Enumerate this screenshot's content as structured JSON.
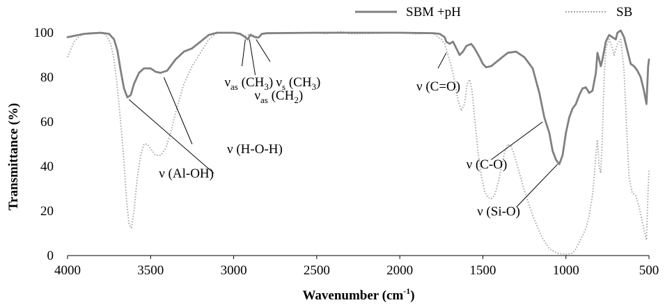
{
  "chart_data": {
    "type": "line",
    "xlabel": "Wavenumber (cm",
    "xlabel_sup": "-1",
    "xlabel_end": ")",
    "ylabel": "Transmittance (%)",
    "xlim": [
      4000,
      500
    ],
    "ylim": [
      0,
      100
    ],
    "x_ticks": [
      "4000",
      "3500",
      "3000",
      "2500",
      "2000",
      "1500",
      "1000",
      "500"
    ],
    "y_ticks": [
      "0",
      "20",
      "40",
      "60",
      "80",
      "100"
    ],
    "grid": false,
    "legend_position": "top-right",
    "series": [
      {
        "name": "SBM +pH",
        "color": "#808080",
        "style": "solid",
        "points": [
          [
            4000,
            98
          ],
          [
            3900,
            99.5
          ],
          [
            3800,
            100
          ],
          [
            3750,
            99.5
          ],
          [
            3720,
            97
          ],
          [
            3700,
            92
          ],
          [
            3680,
            83
          ],
          [
            3660,
            75
          ],
          [
            3640,
            71
          ],
          [
            3620,
            72
          ],
          [
            3600,
            77
          ],
          [
            3570,
            82
          ],
          [
            3540,
            84
          ],
          [
            3500,
            84
          ],
          [
            3470,
            82.5
          ],
          [
            3440,
            82
          ],
          [
            3400,
            83
          ],
          [
            3350,
            88
          ],
          [
            3300,
            91.5
          ],
          [
            3250,
            93
          ],
          [
            3200,
            96
          ],
          [
            3150,
            99
          ],
          [
            3100,
            100
          ],
          [
            3000,
            100
          ],
          [
            2960,
            99.5
          ],
          [
            2930,
            98
          ],
          [
            2915,
            97
          ],
          [
            2900,
            99
          ],
          [
            2870,
            98
          ],
          [
            2850,
            97.8
          ],
          [
            2830,
            99.5
          ],
          [
            2800,
            99.8
          ],
          [
            2500,
            100
          ],
          [
            2000,
            100
          ],
          [
            1800,
            99.8
          ],
          [
            1760,
            99.5
          ],
          [
            1730,
            98
          ],
          [
            1720,
            96
          ],
          [
            1700,
            95
          ],
          [
            1680,
            96
          ],
          [
            1660,
            93
          ],
          [
            1640,
            90
          ],
          [
            1620,
            91.5
          ],
          [
            1600,
            94
          ],
          [
            1570,
            95
          ],
          [
            1550,
            93
          ],
          [
            1520,
            89
          ],
          [
            1500,
            86
          ],
          [
            1480,
            84.5
          ],
          [
            1450,
            85
          ],
          [
            1400,
            88
          ],
          [
            1350,
            91
          ],
          [
            1300,
            91.5
          ],
          [
            1250,
            89
          ],
          [
            1200,
            84
          ],
          [
            1160,
            73
          ],
          [
            1130,
            62
          ],
          [
            1100,
            55
          ],
          [
            1080,
            47
          ],
          [
            1060,
            43
          ],
          [
            1040,
            41
          ],
          [
            1020,
            45
          ],
          [
            1000,
            55
          ],
          [
            980,
            62
          ],
          [
            960,
            66
          ],
          [
            940,
            68
          ],
          [
            920,
            72
          ],
          [
            900,
            75
          ],
          [
            880,
            75.5
          ],
          [
            860,
            73
          ],
          [
            840,
            74
          ],
          [
            820,
            82
          ],
          [
            810,
            91
          ],
          [
            800,
            88
          ],
          [
            790,
            85
          ],
          [
            780,
            88
          ],
          [
            760,
            96
          ],
          [
            740,
            99
          ],
          [
            720,
            98
          ],
          [
            700,
            97
          ],
          [
            690,
            100
          ],
          [
            670,
            101
          ],
          [
            650,
            98
          ],
          [
            630,
            92
          ],
          [
            610,
            86
          ],
          [
            590,
            85
          ],
          [
            570,
            83
          ],
          [
            550,
            80
          ],
          [
            530,
            74
          ],
          [
            515,
            68
          ],
          [
            505,
            85
          ],
          [
            500,
            88
          ]
        ]
      },
      {
        "name": "SB",
        "color": "#a6a6a6",
        "style": "dotted",
        "points": [
          [
            4000,
            89
          ],
          [
            3960,
            96
          ],
          [
            3920,
            99
          ],
          [
            3870,
            100
          ],
          [
            3820,
            99.8
          ],
          [
            3780,
            99.6
          ],
          [
            3760,
            98
          ],
          [
            3740,
            95
          ],
          [
            3720,
            88
          ],
          [
            3700,
            75
          ],
          [
            3680,
            60
          ],
          [
            3660,
            42
          ],
          [
            3645,
            25
          ],
          [
            3630,
            14
          ],
          [
            3615,
            12.5
          ],
          [
            3600,
            20
          ],
          [
            3580,
            35
          ],
          [
            3560,
            45
          ],
          [
            3540,
            50
          ],
          [
            3520,
            50
          ],
          [
            3500,
            48
          ],
          [
            3470,
            45
          ],
          [
            3440,
            45
          ],
          [
            3410,
            48
          ],
          [
            3380,
            55
          ],
          [
            3350,
            64
          ],
          [
            3300,
            77
          ],
          [
            3250,
            85
          ],
          [
            3200,
            91
          ],
          [
            3150,
            97
          ],
          [
            3100,
            100
          ],
          [
            3000,
            100
          ],
          [
            2960,
            99
          ],
          [
            2930,
            98.5
          ],
          [
            2900,
            99.5
          ],
          [
            2870,
            98.5
          ],
          [
            2850,
            98
          ],
          [
            2820,
            99.5
          ],
          [
            2500,
            100
          ],
          [
            2450,
            99.5
          ],
          [
            2350,
            100.5
          ],
          [
            2300,
            99.5
          ],
          [
            2000,
            100
          ],
          [
            1900,
            99.5
          ],
          [
            1800,
            99.8
          ],
          [
            1770,
            98
          ],
          [
            1750,
            97
          ],
          [
            1730,
            95
          ],
          [
            1710,
            90
          ],
          [
            1690,
            85
          ],
          [
            1670,
            78
          ],
          [
            1650,
            70
          ],
          [
            1630,
            65
          ],
          [
            1610,
            68
          ],
          [
            1595,
            77
          ],
          [
            1580,
            79
          ],
          [
            1565,
            74
          ],
          [
            1550,
            62
          ],
          [
            1530,
            47
          ],
          [
            1510,
            36
          ],
          [
            1490,
            29
          ],
          [
            1470,
            26
          ],
          [
            1450,
            25.5
          ],
          [
            1430,
            27
          ],
          [
            1410,
            32
          ],
          [
            1390,
            39
          ],
          [
            1370,
            46
          ],
          [
            1350,
            50
          ],
          [
            1330,
            49
          ],
          [
            1310,
            45
          ],
          [
            1280,
            37
          ],
          [
            1250,
            29
          ],
          [
            1200,
            18
          ],
          [
            1150,
            9
          ],
          [
            1100,
            3
          ],
          [
            1050,
            1
          ],
          [
            1000,
            0.5
          ],
          [
            960,
            1
          ],
          [
            940,
            3
          ],
          [
            920,
            6
          ],
          [
            900,
            9
          ],
          [
            880,
            12
          ],
          [
            860,
            18
          ],
          [
            840,
            27
          ],
          [
            830,
            35
          ],
          [
            820,
            45
          ],
          [
            810,
            52
          ],
          [
            800,
            40
          ],
          [
            790,
            37
          ],
          [
            780,
            55
          ],
          [
            770,
            80
          ],
          [
            760,
            93
          ],
          [
            740,
            97
          ],
          [
            720,
            93
          ],
          [
            710,
            90
          ],
          [
            690,
            95
          ],
          [
            670,
            97
          ],
          [
            650,
            83
          ],
          [
            635,
            58
          ],
          [
            620,
            35
          ],
          [
            600,
            28
          ],
          [
            580,
            27
          ],
          [
            560,
            22
          ],
          [
            540,
            15
          ],
          [
            525,
            10
          ],
          [
            515,
            7
          ],
          [
            505,
            30
          ],
          [
            500,
            38
          ]
        ]
      }
    ],
    "annotations": [
      {
        "text": "ν (Al-OH)",
        "x": 3450,
        "y": 35,
        "line_from": [
          3120,
          37
        ],
        "line_to": [
          3630,
          70
        ]
      },
      {
        "text": "ν (H-O-H)",
        "x": 3040,
        "y": 46,
        "line_from": [
          3250,
          50
        ],
        "line_to": [
          3420,
          80
        ]
      },
      {
        "text": "ν",
        "sub": "as",
        "tail": " (CH",
        "sub2": "3",
        "tail2": ")",
        "x": 3055,
        "y": 76,
        "line_from": [
          2950,
          85
        ],
        "line_to": [
          2930,
          97
        ]
      },
      {
        "text": "ν",
        "sub": "as",
        "tail": " (CH",
        "sub2": "2",
        "tail2": ")",
        "x": 2875,
        "y": 70,
        "line_from": [
          2870,
          81
        ],
        "line_to": [
          2905,
          97
        ]
      },
      {
        "text": "ν",
        "sub": "s",
        "tail": " (CH",
        "sub2": "3",
        "tail2": ")",
        "x": 2745,
        "y": 76,
        "line_from": [
          2780,
          87
        ],
        "line_to": [
          2865,
          97
        ]
      },
      {
        "text": "ν (C=O)",
        "x": 1900,
        "y": 74,
        "line_from": [
          1770,
          84
        ],
        "line_to": [
          1720,
          91
        ]
      },
      {
        "text": "ν (C-O)",
        "x": 1600,
        "y": 39,
        "line_from": [
          1450,
          43
        ],
        "line_to": [
          1140,
          60
        ]
      },
      {
        "text": "ν (Si-O)",
        "x": 1535,
        "y": 18,
        "line_from": [
          1295,
          22
        ],
        "line_to": [
          1050,
          41
        ]
      }
    ]
  }
}
